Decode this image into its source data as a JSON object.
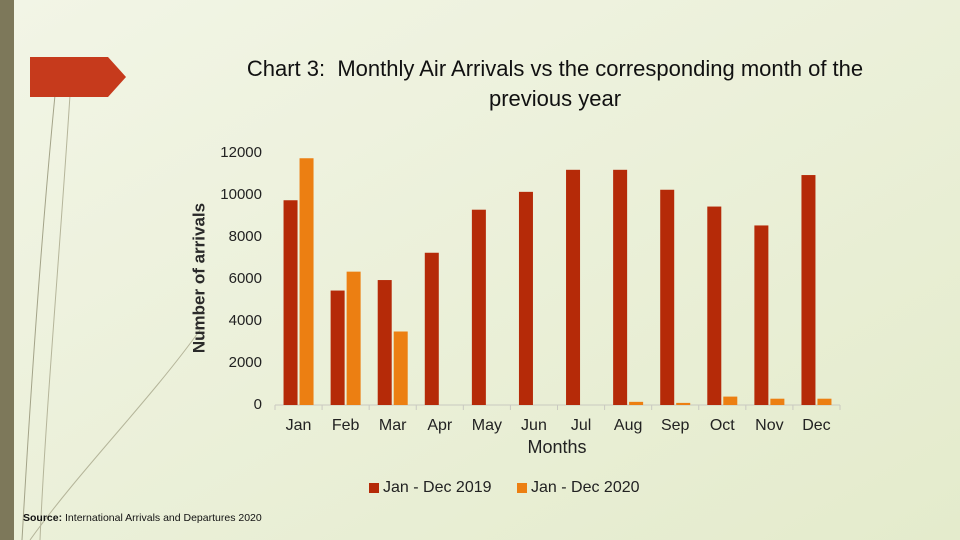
{
  "chart_data": {
    "type": "bar",
    "title": "Chart 3:  Monthly Air Arrivals vs the corresponding month of the previous year",
    "x_label": "Months",
    "y_label": "Number of arrivals",
    "categories": [
      "Jan",
      "Feb",
      "Mar",
      "Apr",
      "May",
      "Jun",
      "Jul",
      "Aug",
      "Sep",
      "Oct",
      "Nov",
      "Dec"
    ],
    "series": [
      {
        "name": "Jan - Dec 2019",
        "color": "#b52a08",
        "values": [
          9750,
          5450,
          5950,
          7250,
          9300,
          10150,
          11200,
          11200,
          10250,
          9450,
          8550,
          10950
        ]
      },
      {
        "name": "Jan - Dec 2020",
        "color": "#ec7f12",
        "values": [
          11750,
          6350,
          3500,
          0,
          0,
          0,
          0,
          150,
          100,
          400,
          300,
          300
        ]
      }
    ],
    "ylim": [
      0,
      12000
    ],
    "yticks": [
      0,
      2000,
      4000,
      6000,
      8000,
      10000,
      12000
    ],
    "grid": false,
    "legend": "bottom"
  },
  "source": {
    "label": "Source:",
    "text": "International Arrivals and Departures 2020"
  }
}
